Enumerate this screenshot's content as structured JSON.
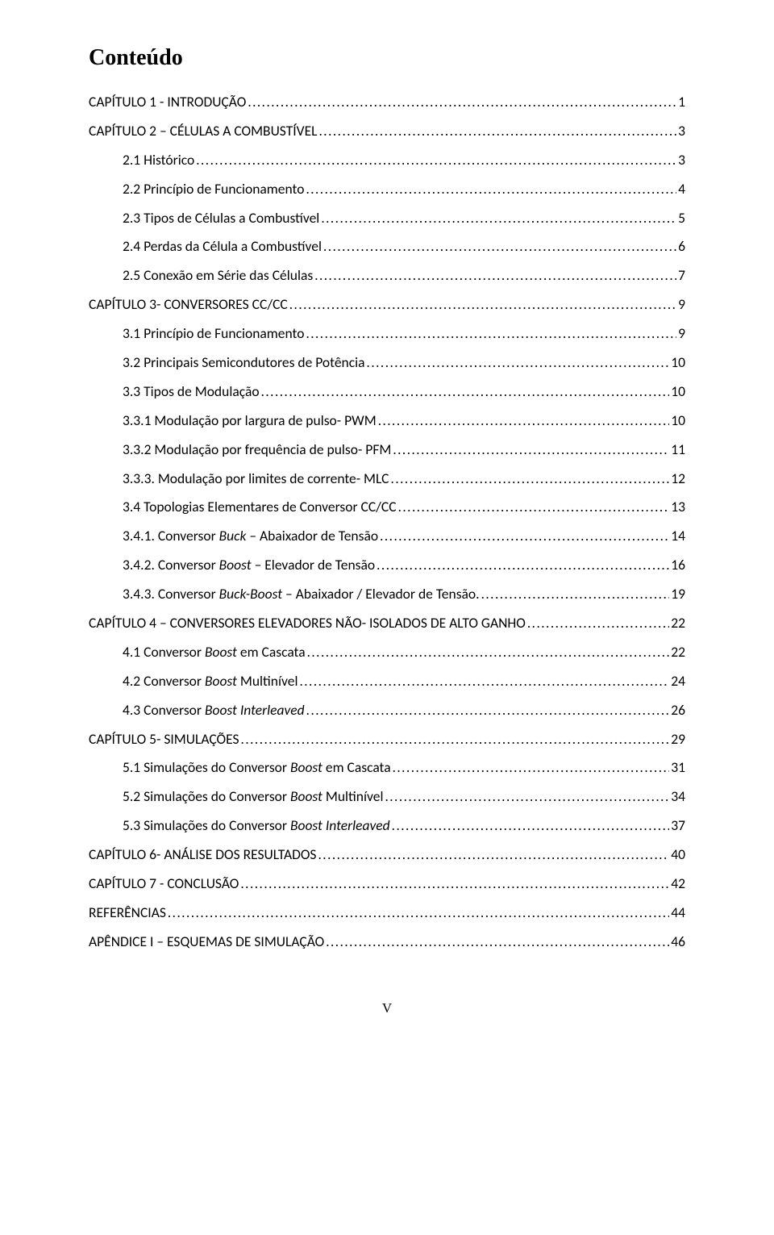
{
  "title": "Conteúdo",
  "footer": "V",
  "toc": [
    {
      "indent": 0,
      "label": "CAPÍTULO 1 - INTRODUÇÃO",
      "page": "1"
    },
    {
      "indent": 0,
      "label": "CAPÍTULO 2 – CÉLULAS A COMBUSTÍVEL",
      "page": "3"
    },
    {
      "indent": 1,
      "label": "2.1      Histórico",
      "page": "3"
    },
    {
      "indent": 1,
      "label": "2.2      Princípio de Funcionamento",
      "page": "4"
    },
    {
      "indent": 1,
      "label": "2.3      Tipos de Células a Combustível",
      "page": "5"
    },
    {
      "indent": 1,
      "label": "2.4      Perdas da Célula a Combustível",
      "page": "6"
    },
    {
      "indent": 1,
      "label": "2.5      Conexão em Série das Células",
      "page": "7"
    },
    {
      "indent": 0,
      "label": "CAPÍTULO 3- CONVERSORES CC/CC",
      "page": "9"
    },
    {
      "indent": 1,
      "label": "3.1      Princípio de Funcionamento",
      "page": "9"
    },
    {
      "indent": 1,
      "label": "3.2      Principais Semicondutores de Potência",
      "page": "10"
    },
    {
      "indent": 1,
      "label": "3.3      Tipos de Modulação",
      "page": "10"
    },
    {
      "indent": 1,
      "label": "3.3.1 Modulação por largura de pulso- PWM",
      "page": "10"
    },
    {
      "indent": 1,
      "label": "3.3.2 Modulação por frequência de pulso- PFM",
      "page": "11"
    },
    {
      "indent": 1,
      "label": "3.3.3. Modulação por limites de corrente- MLC",
      "page": "12"
    },
    {
      "indent": 1,
      "label": "3.4      Topologias Elementares de Conversor CC/CC",
      "page": "13"
    },
    {
      "indent": 1,
      "label_pre": "3.4.1.      Conversor ",
      "label_em": "Buck",
      "label_post": " – Abaixador de Tensão",
      "page": "14"
    },
    {
      "indent": 1,
      "label_pre": "3.4.2.      Conversor ",
      "label_em": "Boost",
      "label_post": " – Elevador de Tensão",
      "page": "16"
    },
    {
      "indent": 1,
      "label_pre": "3.4.3.      Conversor ",
      "label_em": "Buck-Boost",
      "label_post": " – Abaixador / Elevador de Tensão.",
      "page": "19"
    },
    {
      "indent": 0,
      "label": "CAPÍTULO 4 – CONVERSORES ELEVADORES NÃO- ISOLADOS DE ALTO GANHO",
      "page": "22"
    },
    {
      "indent": 1,
      "label_pre": "4.1      Conversor ",
      "label_em": "Boost",
      "label_post": " em Cascata",
      "page": "22"
    },
    {
      "indent": 1,
      "label_pre": "4.2      Conversor ",
      "label_em": "Boost",
      "label_post": " Multinível",
      "page": "24"
    },
    {
      "indent": 1,
      "label_pre": "4.3      Conversor ",
      "label_em": "Boost Interleaved",
      "label_post": "",
      "page": "26"
    },
    {
      "indent": 0,
      "label": "CAPÍTULO 5- SIMULAÇÕES",
      "page": "29"
    },
    {
      "indent": 1,
      "label_pre": "5.1      Simulações do Conversor ",
      "label_em": "Boost",
      "label_post": " em Cascata",
      "page": "31"
    },
    {
      "indent": 1,
      "label_pre": "5.2      Simulações do Conversor ",
      "label_em": "Boost",
      "label_post": " Multinível",
      "page": "34"
    },
    {
      "indent": 1,
      "label_pre": "5.3      Simulações do Conversor ",
      "label_em": "Boost Interleaved",
      "label_post": "",
      "page": "37"
    },
    {
      "indent": 0,
      "label": "CAPÍTULO 6- ANÁLISE DOS RESULTADOS",
      "page": "40"
    },
    {
      "indent": 0,
      "label": "CAPÍTULO 7 - CONCLUSÃO",
      "page": "42"
    },
    {
      "indent": 0,
      "label": "REFERÊNCIAS",
      "page": "44"
    },
    {
      "indent": 0,
      "label": "APÊNDICE I – ESQUEMAS DE SIMULAÇÃO",
      "page": "46"
    }
  ]
}
